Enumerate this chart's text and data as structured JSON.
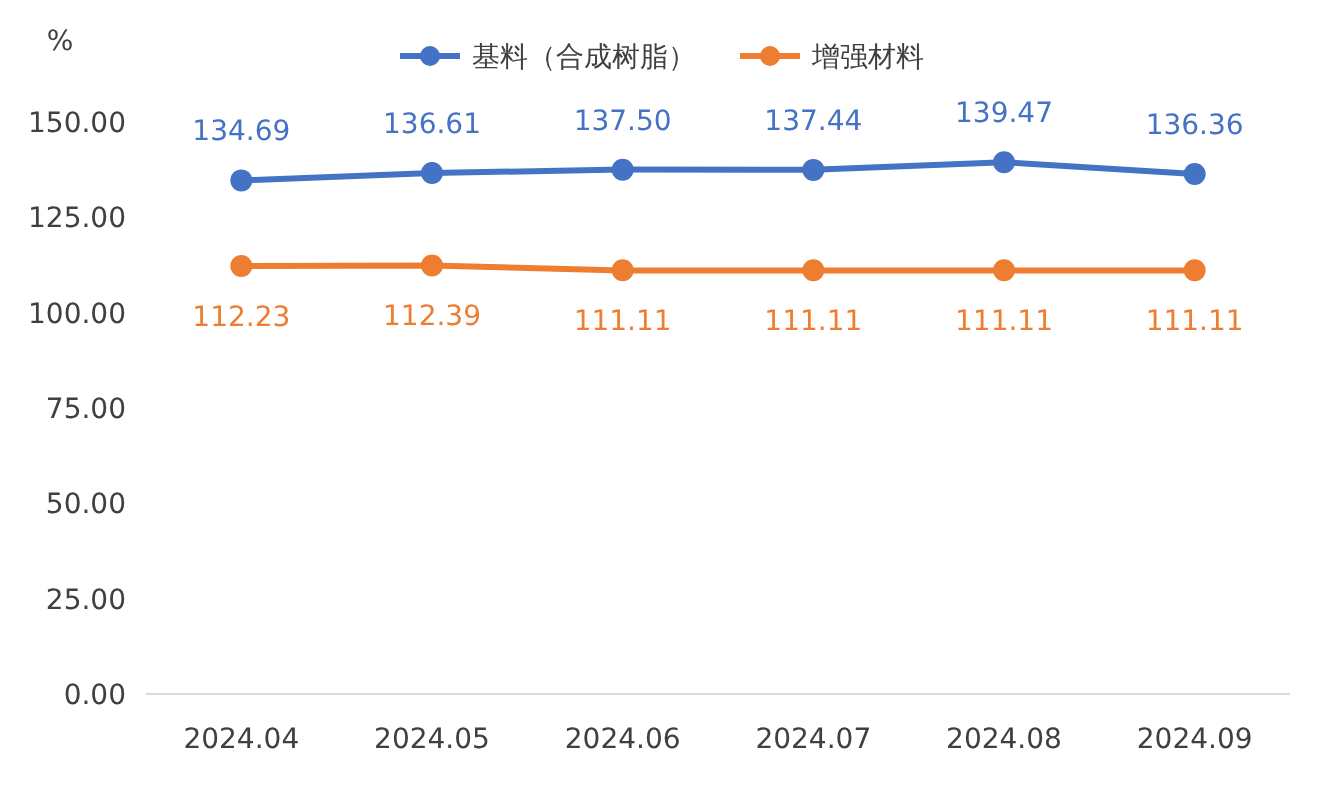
{
  "chart_data": {
    "type": "line",
    "ylabel": "%",
    "categories": [
      "2024.04",
      "2024.05",
      "2024.06",
      "2024.07",
      "2024.08",
      "2024.09"
    ],
    "series": [
      {
        "name": "基料（合成树脂）",
        "color": "#4472c4",
        "values": [
          134.69,
          136.61,
          137.5,
          137.44,
          139.47,
          136.36
        ],
        "value_labels": [
          "134.69",
          "136.61",
          "137.50",
          "137.44",
          "139.47",
          "136.36"
        ]
      },
      {
        "name": "增强材料",
        "color": "#ed7d31",
        "values": [
          112.23,
          112.39,
          111.11,
          111.11,
          111.11,
          111.11
        ],
        "value_labels": [
          "112.23",
          "112.39",
          "111.11",
          "111.11",
          "111.11",
          "111.11"
        ]
      }
    ],
    "ylim": [
      0,
      150
    ],
    "yticks": [
      {
        "value": 0,
        "label": "0.00"
      },
      {
        "value": 25,
        "label": "25.00"
      },
      {
        "value": 50,
        "label": "50.00"
      },
      {
        "value": 75,
        "label": "75.00"
      },
      {
        "value": 100,
        "label": "100.00"
      },
      {
        "value": 125,
        "label": "125.00"
      },
      {
        "value": 150,
        "label": "150.00"
      }
    ],
    "marker": "circle",
    "legend": "top",
    "grid": false
  }
}
